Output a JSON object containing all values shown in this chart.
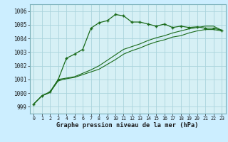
{
  "xlabel": "Graphe pression niveau de la mer (hPa)",
  "background_color": "#cceeff",
  "plot_bg_color": "#d6f0f5",
  "grid_color": "#aad4dc",
  "line_color": "#1a6b1a",
  "border_color": "#7ab0b8",
  "x_values": [
    0,
    1,
    2,
    3,
    4,
    5,
    6,
    7,
    8,
    9,
    10,
    11,
    12,
    13,
    14,
    15,
    16,
    17,
    18,
    19,
    20,
    21,
    22,
    23
  ],
  "line1": [
    999.2,
    999.8,
    1000.05,
    1000.9,
    1001.05,
    1001.15,
    1001.35,
    1001.55,
    1001.75,
    1002.1,
    1002.45,
    1002.85,
    1003.1,
    1003.3,
    1003.55,
    1003.75,
    1003.9,
    1004.1,
    1004.2,
    1004.4,
    1004.55,
    1004.65,
    1004.65,
    1004.55
  ],
  "line2": [
    999.2,
    999.8,
    1000.05,
    1001.0,
    1001.1,
    1001.2,
    1001.45,
    1001.7,
    1002.0,
    1002.4,
    1002.8,
    1003.2,
    1003.4,
    1003.6,
    1003.85,
    1004.05,
    1004.2,
    1004.4,
    1004.55,
    1004.7,
    1004.8,
    1004.9,
    1004.9,
    1004.6
  ],
  "line3": [
    999.2,
    999.8,
    1000.1,
    1001.0,
    1002.55,
    1002.85,
    1003.2,
    1004.75,
    1005.15,
    1005.3,
    1005.75,
    1005.65,
    1005.2,
    1005.2,
    1005.05,
    1004.9,
    1005.05,
    1004.8,
    1004.9,
    1004.8,
    1004.85,
    1004.75,
    1004.75,
    1004.6
  ],
  "ylim": [
    998.5,
    1006.5
  ],
  "yticks": [
    999,
    1000,
    1001,
    1002,
    1003,
    1004,
    1005,
    1006
  ],
  "xlim": [
    -0.5,
    23.5
  ],
  "xticks": [
    0,
    1,
    2,
    3,
    4,
    5,
    6,
    7,
    8,
    9,
    10,
    11,
    12,
    13,
    14,
    15,
    16,
    17,
    18,
    19,
    20,
    21,
    22,
    23
  ]
}
